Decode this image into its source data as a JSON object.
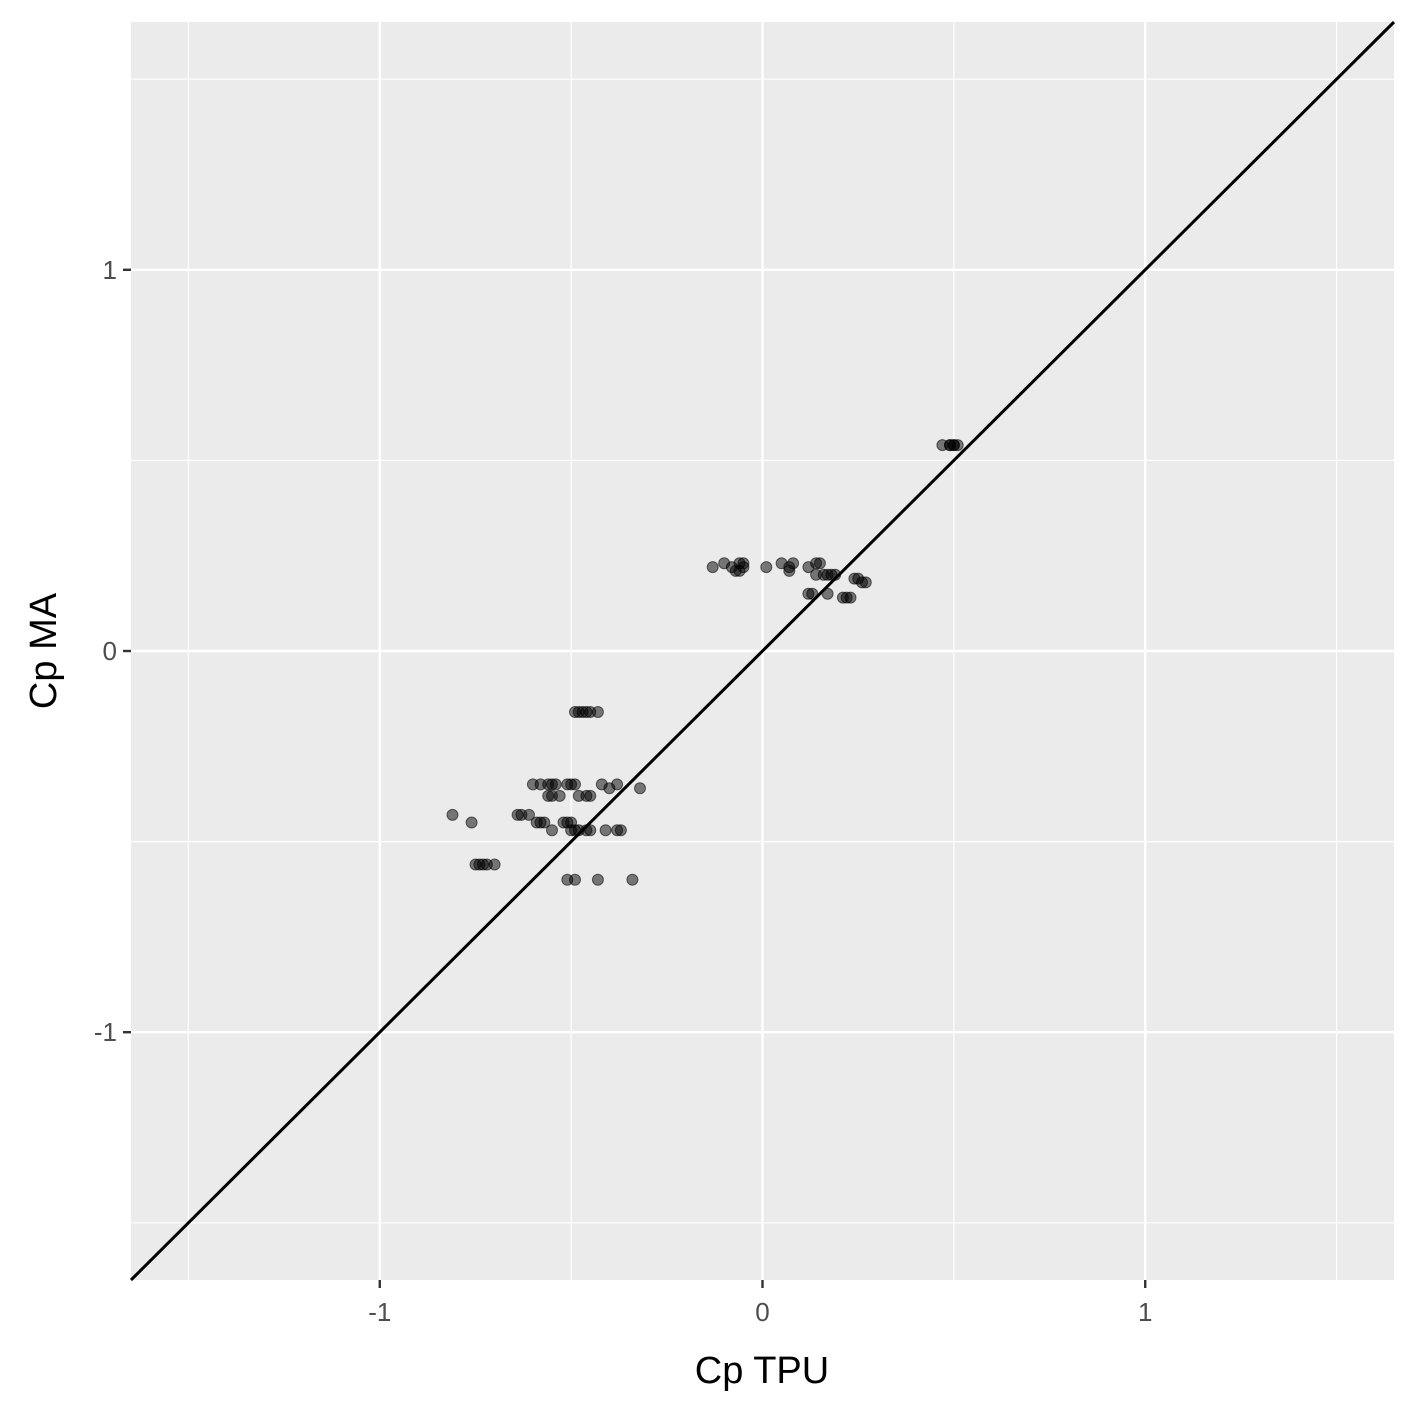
{
  "chart_data": {
    "type": "scatter",
    "title": "",
    "xlabel": "Cp TPU",
    "ylabel": "Cp MA",
    "xlim": [
      -1.65,
      1.65
    ],
    "ylim": [
      -1.65,
      1.65
    ],
    "x_ticks": [
      {
        "value": -1,
        "label": "-1"
      },
      {
        "value": 0,
        "label": "0"
      },
      {
        "value": 1,
        "label": "1"
      }
    ],
    "y_ticks": [
      {
        "value": -1,
        "label": "-1"
      },
      {
        "value": 0,
        "label": "0"
      },
      {
        "value": 1,
        "label": "1"
      }
    ],
    "minor_breaks": [
      -1.5,
      -0.5,
      0.5,
      1.5
    ],
    "grid": true,
    "legend": "none",
    "reference_line": {
      "type": "identity",
      "label": "y = x"
    },
    "point_color": "#000000",
    "point_opacity": 0.5,
    "panel_color": "#ebebeb",
    "points": [
      [
        0.47,
        0.54
      ],
      [
        0.49,
        0.54
      ],
      [
        0.5,
        0.54
      ],
      [
        0.51,
        0.54
      ],
      [
        0.5,
        0.54
      ],
      [
        0.49,
        0.54
      ],
      [
        -0.13,
        0.22
      ],
      [
        -0.1,
        0.23
      ],
      [
        -0.08,
        0.22
      ],
      [
        -0.07,
        0.21
      ],
      [
        -0.06,
        0.23
      ],
      [
        -0.05,
        0.22
      ],
      [
        -0.06,
        0.21
      ],
      [
        -0.05,
        0.23
      ],
      [
        0.01,
        0.22
      ],
      [
        0.05,
        0.23
      ],
      [
        0.07,
        0.22
      ],
      [
        0.07,
        0.21
      ],
      [
        0.08,
        0.23
      ],
      [
        0.12,
        0.22
      ],
      [
        0.14,
        0.23
      ],
      [
        0.15,
        0.23
      ],
      [
        0.14,
        0.2
      ],
      [
        0.16,
        0.2
      ],
      [
        0.17,
        0.2
      ],
      [
        0.18,
        0.2
      ],
      [
        0.19,
        0.2
      ],
      [
        0.12,
        0.15
      ],
      [
        0.13,
        0.15
      ],
      [
        0.17,
        0.15
      ],
      [
        0.21,
        0.14
      ],
      [
        0.22,
        0.14
      ],
      [
        0.23,
        0.14
      ],
      [
        0.24,
        0.19
      ],
      [
        0.25,
        0.19
      ],
      [
        0.26,
        0.18
      ],
      [
        0.27,
        0.18
      ],
      [
        -0.49,
        -0.16
      ],
      [
        -0.48,
        -0.16
      ],
      [
        -0.47,
        -0.16
      ],
      [
        -0.46,
        -0.16
      ],
      [
        -0.45,
        -0.16
      ],
      [
        -0.43,
        -0.16
      ],
      [
        -0.6,
        -0.35
      ],
      [
        -0.58,
        -0.35
      ],
      [
        -0.56,
        -0.35
      ],
      [
        -0.55,
        -0.35
      ],
      [
        -0.54,
        -0.35
      ],
      [
        -0.51,
        -0.35
      ],
      [
        -0.5,
        -0.35
      ],
      [
        -0.49,
        -0.35
      ],
      [
        -0.42,
        -0.35
      ],
      [
        -0.38,
        -0.35
      ],
      [
        -0.56,
        -0.38
      ],
      [
        -0.55,
        -0.38
      ],
      [
        -0.53,
        -0.38
      ],
      [
        -0.48,
        -0.38
      ],
      [
        -0.46,
        -0.38
      ],
      [
        -0.45,
        -0.38
      ],
      [
        -0.4,
        -0.36
      ],
      [
        -0.32,
        -0.36
      ],
      [
        -0.64,
        -0.43
      ],
      [
        -0.63,
        -0.43
      ],
      [
        -0.61,
        -0.43
      ],
      [
        -0.59,
        -0.45
      ],
      [
        -0.58,
        -0.45
      ],
      [
        -0.57,
        -0.45
      ],
      [
        -0.52,
        -0.45
      ],
      [
        -0.51,
        -0.45
      ],
      [
        -0.5,
        -0.45
      ],
      [
        -0.55,
        -0.47
      ],
      [
        -0.5,
        -0.47
      ],
      [
        -0.49,
        -0.47
      ],
      [
        -0.48,
        -0.47
      ],
      [
        -0.46,
        -0.47
      ],
      [
        -0.45,
        -0.47
      ],
      [
        -0.41,
        -0.47
      ],
      [
        -0.38,
        -0.47
      ],
      [
        -0.37,
        -0.47
      ],
      [
        -0.81,
        -0.43
      ],
      [
        -0.76,
        -0.45
      ],
      [
        -0.75,
        -0.56
      ],
      [
        -0.74,
        -0.56
      ],
      [
        -0.73,
        -0.56
      ],
      [
        -0.72,
        -0.56
      ],
      [
        -0.7,
        -0.56
      ],
      [
        -0.51,
        -0.6
      ],
      [
        -0.49,
        -0.6
      ],
      [
        -0.43,
        -0.6
      ],
      [
        -0.34,
        -0.6
      ]
    ]
  }
}
